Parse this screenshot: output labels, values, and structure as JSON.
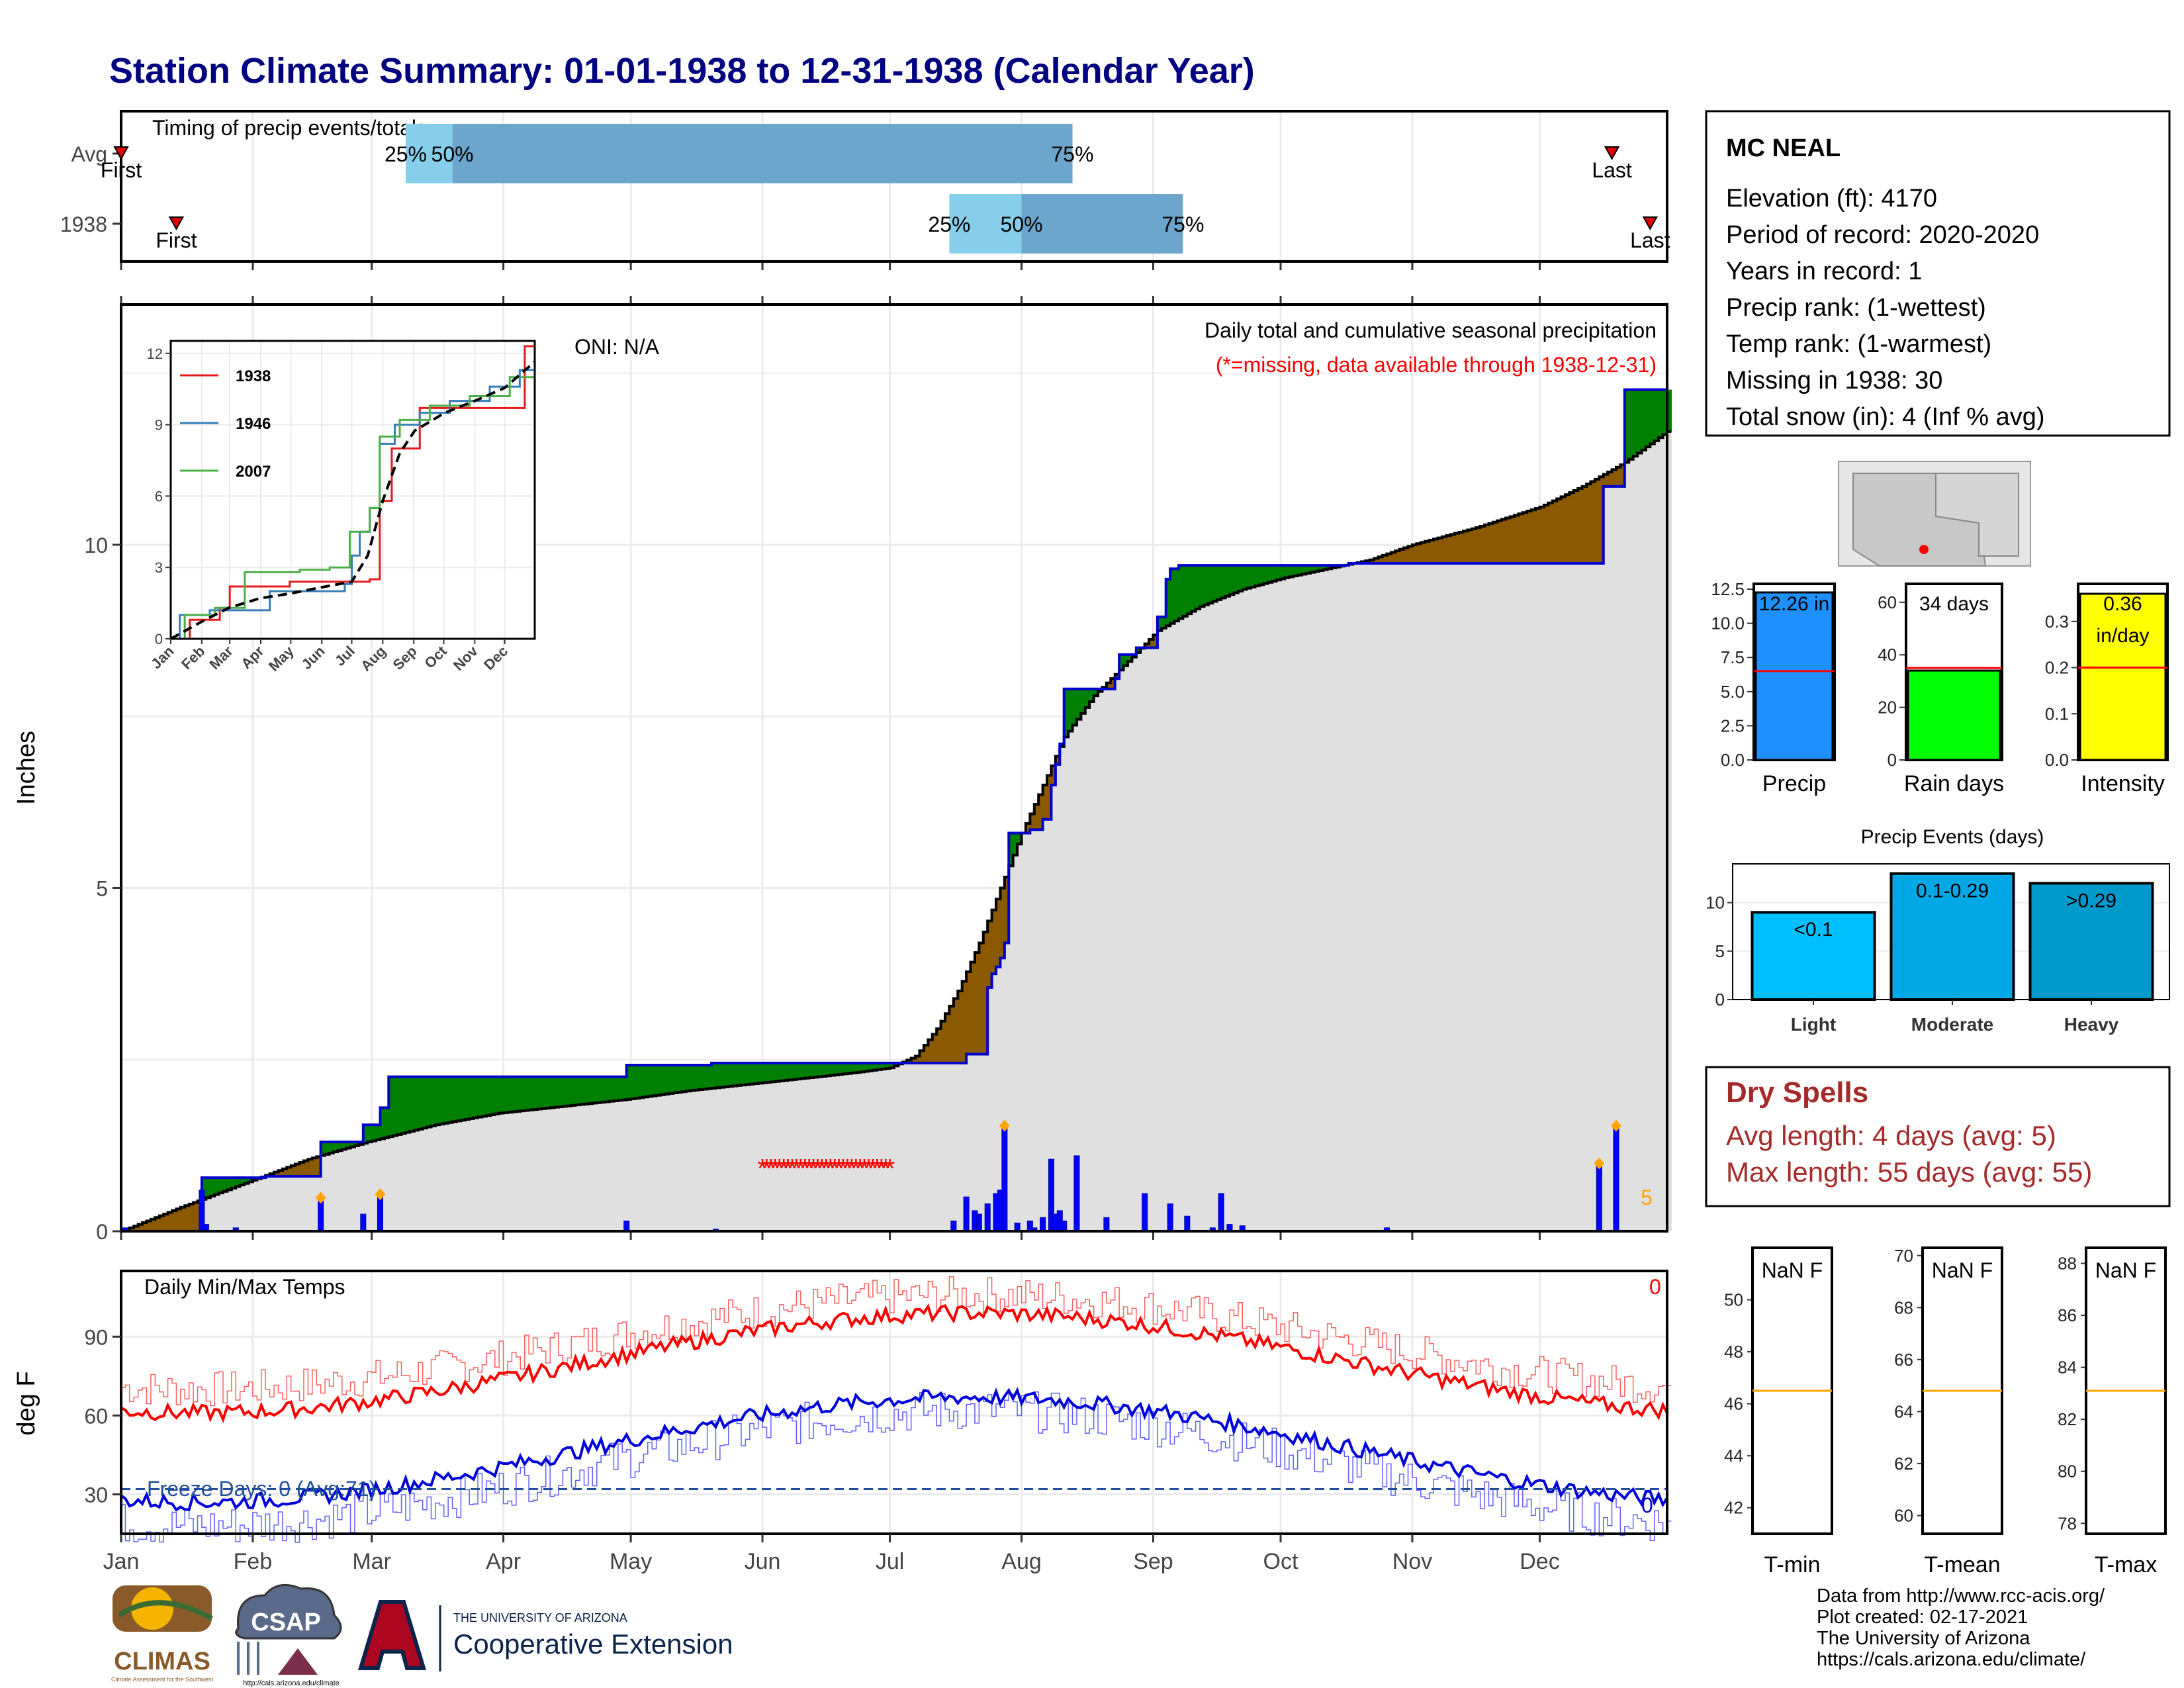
{
  "title": "Station Climate Summary: 01-01-1938 to 12-31-1938 (Calendar Year)",
  "colors": {
    "title": "#000080",
    "green": "#008000",
    "brown": "#8B5A00",
    "fill": "#E0E0E0",
    "precip_bar": "#1E90FF",
    "rain_bar": "#00FF00",
    "intensity_bar": "#FFFF00",
    "light": "#00BFFF",
    "moderate": "#00A9E6",
    "heavy": "#0099CC",
    "dry_text": "#A52A2A",
    "avg_line": "#FF0000",
    "orange_line": "#FFA500"
  },
  "month_labels": [
    "Jan",
    "Feb",
    "Mar",
    "Apr",
    "May",
    "Jun",
    "Jul",
    "Aug",
    "Sep",
    "Oct",
    "Nov",
    "Dec"
  ],
  "month_starts": [
    1,
    32,
    60,
    91,
    121,
    152,
    182,
    213,
    244,
    274,
    305,
    335
  ],
  "timing": {
    "label": "Timing of precip events/totals",
    "rows": [
      {
        "name": "Avg",
        "first_day": 1,
        "last_day": 352,
        "p25": 68,
        "p50": 79,
        "p75": 225,
        "first_label": "First",
        "last_label": "Last",
        "p25_label": "25%",
        "p50_label": "50%",
        "p75_label": "75%"
      },
      {
        "name": "1938",
        "first_day": 14,
        "last_day": 361,
        "p25": 196,
        "p50": 213,
        "p75": 251,
        "first_label": "First",
        "last_label": "Last",
        "p25_label": "25%",
        "p50_label": "50%",
        "p75_label": "75%"
      }
    ]
  },
  "precip_panel": {
    "ylabel": "Inches",
    "yticks": [
      0,
      5,
      10
    ],
    "ymax": 13.5,
    "oni_label": "ONI: N/A",
    "subtitle": "Daily total and cumulative seasonal precipitation",
    "missing_note": "(*=missing, data available through 1938-12-31)",
    "right_count": "5",
    "missing_range": [
      152,
      182
    ],
    "cumulative_1938": [
      [
        1,
        0
      ],
      [
        20,
        0
      ],
      [
        20,
        0.78
      ],
      [
        35,
        0.78
      ],
      [
        35,
        0.8
      ],
      [
        48,
        0.8
      ],
      [
        48,
        1.3
      ],
      [
        58,
        1.3
      ],
      [
        58,
        1.55
      ],
      [
        62,
        1.55
      ],
      [
        62,
        1.8
      ],
      [
        64,
        1.8
      ],
      [
        64,
        2.25
      ],
      [
        120,
        2.25
      ],
      [
        120,
        2.42
      ],
      [
        140,
        2.42
      ],
      [
        140,
        2.45
      ],
      [
        200,
        2.45
      ],
      [
        200,
        2.58
      ],
      [
        205,
        2.58
      ],
      [
        205,
        3.55
      ],
      [
        206,
        3.55
      ],
      [
        206,
        3.75
      ],
      [
        207,
        3.75
      ],
      [
        207,
        3.85
      ],
      [
        208,
        3.85
      ],
      [
        208,
        3.98
      ],
      [
        209,
        3.98
      ],
      [
        209,
        4.2
      ],
      [
        210,
        4.2
      ],
      [
        210,
        5.8
      ],
      [
        215,
        5.8
      ],
      [
        215,
        5.85
      ],
      [
        218,
        5.85
      ],
      [
        218,
        6.0
      ],
      [
        220,
        6.0
      ],
      [
        220,
        6.5
      ],
      [
        221,
        6.5
      ],
      [
        221,
        6.8
      ],
      [
        222,
        6.8
      ],
      [
        222,
        7.1
      ],
      [
        223,
        7.1
      ],
      [
        223,
        7.9
      ],
      [
        235,
        7.9
      ],
      [
        235,
        8.05
      ],
      [
        236,
        8.05
      ],
      [
        236,
        8.4
      ],
      [
        240,
        8.4
      ],
      [
        240,
        8.5
      ],
      [
        245,
        8.5
      ],
      [
        245,
        8.95
      ],
      [
        247,
        8.95
      ],
      [
        247,
        9.5
      ],
      [
        248,
        9.5
      ],
      [
        248,
        9.65
      ],
      [
        250,
        9.65
      ],
      [
        250,
        9.7
      ],
      [
        290,
        9.7
      ],
      [
        290,
        9.73
      ],
      [
        350,
        9.73
      ],
      [
        350,
        10.85
      ],
      [
        355,
        10.85
      ],
      [
        355,
        12.26
      ],
      [
        365,
        12.26
      ]
    ],
    "avg_cumulative": [
      [
        1,
        0
      ],
      [
        15,
        0.35
      ],
      [
        31,
        0.72
      ],
      [
        45,
        1.05
      ],
      [
        59,
        1.3
      ],
      [
        75,
        1.55
      ],
      [
        90,
        1.72
      ],
      [
        105,
        1.82
      ],
      [
        120,
        1.92
      ],
      [
        135,
        2.05
      ],
      [
        150,
        2.15
      ],
      [
        165,
        2.25
      ],
      [
        175,
        2.32
      ],
      [
        182,
        2.38
      ],
      [
        188,
        2.55
      ],
      [
        193,
        2.95
      ],
      [
        198,
        3.5
      ],
      [
        203,
        4.2
      ],
      [
        208,
        5.0
      ],
      [
        213,
        5.8
      ],
      [
        218,
        6.5
      ],
      [
        223,
        7.2
      ],
      [
        230,
        7.8
      ],
      [
        238,
        8.3
      ],
      [
        245,
        8.75
      ],
      [
        255,
        9.1
      ],
      [
        265,
        9.35
      ],
      [
        275,
        9.52
      ],
      [
        285,
        9.65
      ],
      [
        295,
        9.78
      ],
      [
        305,
        10.0
      ],
      [
        320,
        10.25
      ],
      [
        335,
        10.55
      ],
      [
        345,
        10.85
      ],
      [
        355,
        11.2
      ],
      [
        365,
        11.65
      ]
    ],
    "daily_bars": [
      [
        2,
        0.05
      ],
      [
        20,
        0.6
      ],
      [
        21,
        0.1
      ],
      [
        28,
        0.05
      ],
      [
        48,
        0.45
      ],
      [
        58,
        0.25
      ],
      [
        62,
        0.5
      ],
      [
        120,
        0.15
      ],
      [
        141,
        0.03
      ],
      [
        197,
        0.15
      ],
      [
        200,
        0.5
      ],
      [
        202,
        0.3
      ],
      [
        203,
        0.25
      ],
      [
        205,
        0.4
      ],
      [
        207,
        0.55
      ],
      [
        208,
        0.6
      ],
      [
        209,
        1.5
      ],
      [
        212,
        0.12
      ],
      [
        215,
        0.15
      ],
      [
        216,
        0.05
      ],
      [
        218,
        0.2
      ],
      [
        220,
        1.05
      ],
      [
        221,
        0.25
      ],
      [
        222,
        0.3
      ],
      [
        223,
        0.15
      ],
      [
        226,
        1.1
      ],
      [
        233,
        0.2
      ],
      [
        242,
        0.55
      ],
      [
        248,
        0.4
      ],
      [
        252,
        0.22
      ],
      [
        258,
        0.05
      ],
      [
        260,
        0.55
      ],
      [
        262,
        0.1
      ],
      [
        265,
        0.08
      ],
      [
        299,
        0.05
      ],
      [
        349,
        0.95
      ],
      [
        353,
        1.5
      ]
    ],
    "diamonds": [
      [
        48,
        0.45
      ],
      [
        62,
        0.5
      ],
      [
        209,
        1.5
      ],
      [
        349,
        0.95
      ],
      [
        353,
        1.5
      ]
    ]
  },
  "inset": {
    "yticks": [
      0,
      3,
      6,
      9,
      12
    ],
    "series": [
      {
        "name": "1938",
        "color": "#E41A1C",
        "points": [
          [
            1,
            0
          ],
          [
            20,
            0.8
          ],
          [
            50,
            1.3
          ],
          [
            60,
            2.2
          ],
          [
            120,
            2.4
          ],
          [
            200,
            2.5
          ],
          [
            210,
            5.8
          ],
          [
            222,
            8.0
          ],
          [
            250,
            9.7
          ],
          [
            350,
            9.7
          ],
          [
            355,
            12.3
          ],
          [
            365,
            12.3
          ]
        ]
      },
      {
        "name": "1946",
        "color": "#377EB8",
        "points": [
          [
            1,
            0
          ],
          [
            10,
            1.0
          ],
          [
            40,
            1.2
          ],
          [
            100,
            2.0
          ],
          [
            175,
            2.3
          ],
          [
            182,
            3.5
          ],
          [
            190,
            4.5
          ],
          [
            200,
            5.5
          ],
          [
            210,
            8.2
          ],
          [
            225,
            9.0
          ],
          [
            250,
            9.5
          ],
          [
            280,
            10.0
          ],
          [
            320,
            10.6
          ],
          [
            350,
            11.3
          ],
          [
            365,
            11.5
          ]
        ]
      },
      {
        "name": "2007",
        "color": "#4DAF4A",
        "points": [
          [
            1,
            0
          ],
          [
            15,
            1.0
          ],
          [
            45,
            1.3
          ],
          [
            75,
            2.8
          ],
          [
            130,
            2.9
          ],
          [
            160,
            3.0
          ],
          [
            180,
            4.5
          ],
          [
            200,
            5.5
          ],
          [
            210,
            8.5
          ],
          [
            230,
            9.2
          ],
          [
            260,
            9.8
          ],
          [
            300,
            10.2
          ],
          [
            340,
            11.0
          ],
          [
            365,
            11.6
          ]
        ]
      },
      {
        "name": "avg",
        "color": "#000000",
        "points": [
          [
            1,
            0
          ],
          [
            31,
            0.7
          ],
          [
            59,
            1.3
          ],
          [
            90,
            1.7
          ],
          [
            120,
            1.9
          ],
          [
            150,
            2.15
          ],
          [
            182,
            2.4
          ],
          [
            198,
            3.5
          ],
          [
            213,
            5.8
          ],
          [
            230,
            7.8
          ],
          [
            245,
            8.75
          ],
          [
            275,
            9.5
          ],
          [
            305,
            10.0
          ],
          [
            335,
            10.55
          ],
          [
            365,
            11.65
          ]
        ]
      }
    ]
  },
  "temp_panel": {
    "ylabel": "deg F",
    "label": "Daily Min/Max Temps",
    "yticks": [
      30,
      60,
      90
    ],
    "ymin": 15,
    "ymax": 115,
    "freeze_label": "Freeze Days: 0 (Avg:71)",
    "max_count": "0",
    "min_count": "0",
    "freeze_line": 32
  },
  "station": {
    "name": "MC NEAL",
    "lines": [
      "Elevation (ft): 4170",
      "Period of record: 2020-2020",
      "Years in record: 1",
      "Precip rank:  (1-wettest)",
      "Temp rank:  (1-warmest)",
      "Missing in 1938: 30",
      "Total snow (in): 4 (Inf % avg)"
    ]
  },
  "mini_bars": [
    {
      "label": "Precip",
      "value_label": "12.26 in",
      "value": 12.26,
      "avg": 6.5,
      "ymax": 12.5,
      "yticks": [
        0.0,
        2.5,
        5.0,
        7.5,
        10.0,
        12.5
      ],
      "yticklabels": [
        "0.0",
        "2.5",
        "5.0",
        "7.5",
        "10.0",
        "12.5"
      ],
      "color": "#1E90FF"
    },
    {
      "label": "Rain days",
      "value_label": "34 days",
      "value": 34,
      "avg": 35,
      "ymax": 65,
      "yticks": [
        0,
        20,
        40,
        60
      ],
      "yticklabels": [
        "0",
        "20",
        "40",
        "60"
      ],
      "color": "#00FF00"
    },
    {
      "label": "Intensity",
      "value_label": "0.36",
      "value_label2": "in/day",
      "value": 0.36,
      "avg": 0.2,
      "ymax": 0.37,
      "yticks": [
        0.0,
        0.1,
        0.2,
        0.3
      ],
      "yticklabels": [
        "0.0",
        "0.1",
        "0.2",
        "0.3"
      ],
      "color": "#FFFF00"
    }
  ],
  "events": {
    "title": "Precip Events (days)",
    "ymax": 14,
    "yticks": [
      0,
      5,
      10
    ],
    "bars": [
      {
        "name": "Light",
        "label": "<0.1",
        "value": 9,
        "color": "#00BFFF"
      },
      {
        "name": "Moderate",
        "label": "0.1-0.29",
        "value": 13,
        "color": "#00A9E6"
      },
      {
        "name": "Heavy",
        "label": ">0.29",
        "value": 12,
        "color": "#0099CC"
      }
    ]
  },
  "dry_spells": {
    "title": "Dry Spells",
    "avg_line": "Avg length: 4 days (avg: 5)",
    "max_line": "Max length: 55 days (avg: 55)"
  },
  "temp_boxes": [
    {
      "label": "T-min",
      "value_label": "NaN F",
      "yticks": [
        42,
        44,
        46,
        48,
        50
      ],
      "ymin": 41,
      "ymax": 52,
      "avg": 46.5
    },
    {
      "label": "T-mean",
      "value_label": "NaN F",
      "yticks": [
        60,
        62,
        64,
        66,
        68,
        70
      ],
      "ymin": 59.3,
      "ymax": 70.3,
      "avg": 64.8
    },
    {
      "label": "T-max",
      "value_label": "NaN F",
      "yticks": [
        78,
        80,
        82,
        84,
        86,
        88
      ],
      "ymin": 77.6,
      "ymax": 88.6,
      "avg": 83.1
    }
  ],
  "logos": {
    "climas": "CLIMAS",
    "climas_sub": "Climate Assessment for the Southwest",
    "csap": "CSAP",
    "csap_url": "http://cals.arizona.edu/climate",
    "ua_small": "THE UNIVERSITY OF ARIZONA",
    "ua_big": "Cooperative Extension"
  },
  "credits": [
    "Data from http://www.rcc-acis.org/",
    "Plot created: 02-17-2021",
    "The University of Arizona",
    "https://cals.arizona.edu/climate/"
  ]
}
